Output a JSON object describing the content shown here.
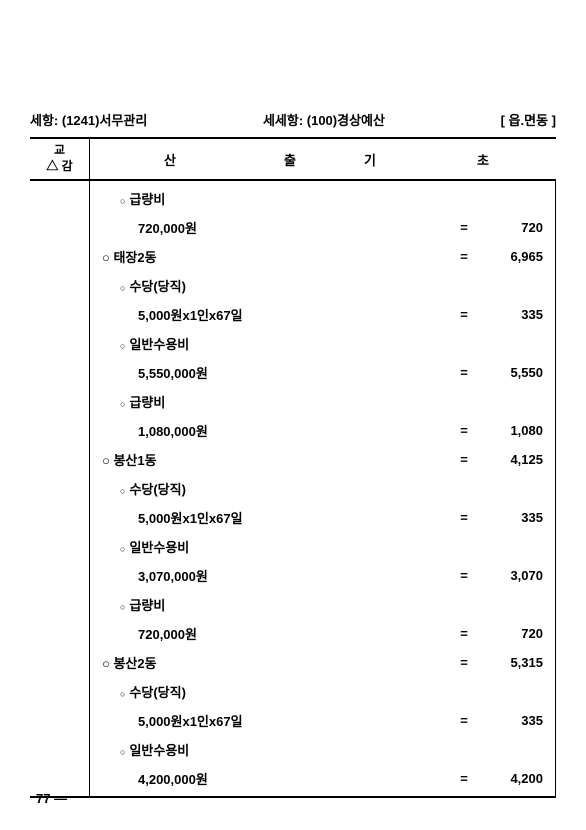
{
  "header": {
    "left": "세항: (1241)서무관리",
    "center": "세세항: (100)경상예산",
    "right": "[ 읍.면동    ]"
  },
  "thead": {
    "col_left_top": "교",
    "col_left_bottom": "△ 감",
    "san": "산",
    "chul": "출",
    "gi": "기",
    "cho": "초"
  },
  "rows": [
    {
      "indent": 1,
      "style": "small",
      "label": "급량비",
      "eq": "",
      "val": ""
    },
    {
      "indent": 2,
      "style": "none",
      "label": "720,000원",
      "eq": "=",
      "val": "720"
    },
    {
      "indent": 0,
      "style": "big",
      "label": "태장2동",
      "eq": "=",
      "val": "6,965"
    },
    {
      "indent": 1,
      "style": "small",
      "label": "수당(당직)",
      "eq": "",
      "val": ""
    },
    {
      "indent": 2,
      "style": "none",
      "label": "5,000원x1인x67일",
      "eq": "=",
      "val": "335"
    },
    {
      "indent": 1,
      "style": "small",
      "label": "일반수용비",
      "eq": "",
      "val": ""
    },
    {
      "indent": 2,
      "style": "none",
      "label": "5,550,000원",
      "eq": "=",
      "val": "5,550"
    },
    {
      "indent": 1,
      "style": "small",
      "label": "급량비",
      "eq": "",
      "val": ""
    },
    {
      "indent": 2,
      "style": "none",
      "label": "1,080,000원",
      "eq": "=",
      "val": "1,080"
    },
    {
      "indent": 0,
      "style": "big",
      "label": "봉산1동",
      "eq": "=",
      "val": "4,125"
    },
    {
      "indent": 1,
      "style": "small",
      "label": "수당(당직)",
      "eq": "",
      "val": ""
    },
    {
      "indent": 2,
      "style": "none",
      "label": "5,000원x1인x67일",
      "eq": "=",
      "val": "335"
    },
    {
      "indent": 1,
      "style": "small",
      "label": "일반수용비",
      "eq": "",
      "val": ""
    },
    {
      "indent": 2,
      "style": "none",
      "label": "3,070,000원",
      "eq": "=",
      "val": "3,070"
    },
    {
      "indent": 1,
      "style": "small",
      "label": "급량비",
      "eq": "",
      "val": ""
    },
    {
      "indent": 2,
      "style": "none",
      "label": "720,000원",
      "eq": "=",
      "val": "720"
    },
    {
      "indent": 0,
      "style": "big",
      "label": "봉산2동",
      "eq": "=",
      "val": "5,315"
    },
    {
      "indent": 1,
      "style": "small",
      "label": "수당(당직)",
      "eq": "",
      "val": ""
    },
    {
      "indent": 2,
      "style": "none",
      "label": "5,000원x1인x67일",
      "eq": "=",
      "val": "335"
    },
    {
      "indent": 1,
      "style": "small",
      "label": "일반수용비",
      "eq": "",
      "val": ""
    },
    {
      "indent": 2,
      "style": "none",
      "label": "4,200,000원",
      "eq": "=",
      "val": "4,200"
    }
  ],
  "page_num": "77 —"
}
